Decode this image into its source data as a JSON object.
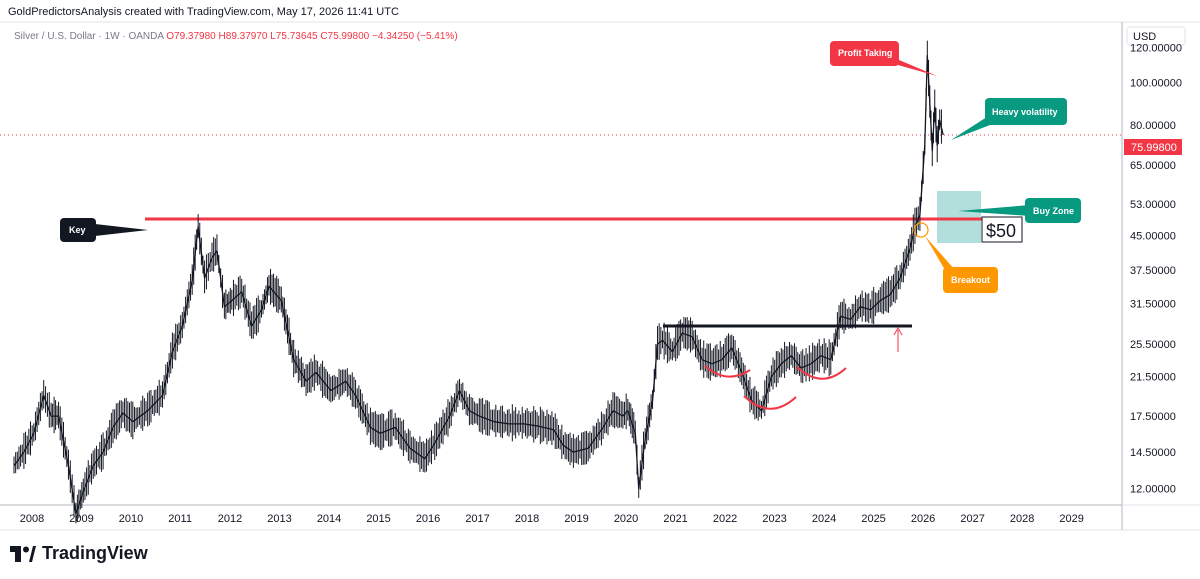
{
  "header": {
    "attribution": "GoldPredictorsAnalysis created with TradingView.com, May 17, 2026 11:41 UTC"
  },
  "legend": {
    "symbol": "Silver / U.S. Dollar · 1W · OANDA",
    "open": "O79.37980",
    "high": "H89.37970",
    "low": "L75.73645",
    "close": "C75.99800",
    "change": "−4.34250 (−5.41%)"
  },
  "price_axis": {
    "currency": "USD",
    "ticks": [
      "120.00000",
      "100.00000",
      "80.00000",
      "65.00000",
      "53.00000",
      "45.00000",
      "37.50000",
      "31.50000",
      "25.50000",
      "21.50000",
      "17.50000",
      "14.50000",
      "12.00000"
    ],
    "last_price_label": "75.99800"
  },
  "time_axis": {
    "ticks": [
      "2008",
      "2009",
      "2010",
      "2011",
      "2012",
      "2013",
      "2014",
      "2015",
      "2016",
      "2017",
      "2018",
      "2019",
      "2020",
      "2021",
      "2022",
      "2023",
      "2024",
      "2025",
      "2026",
      "2027",
      "2028",
      "2029"
    ]
  },
  "annotations": {
    "key": "Key",
    "profit_taking": "Profit Taking",
    "heavy_volatility": "Heavy volatility",
    "buy_zone": "Buy Zone",
    "breakout": "Breakout",
    "fifty": "$50"
  },
  "colors": {
    "red": "#f23645",
    "teal": "#089981",
    "orange": "#ff9800",
    "buy_zone_fill": "#b2dfdb",
    "key_box": "#131722",
    "candle": "#131722"
  },
  "brand": {
    "name": "TradingView"
  },
  "chart_data": {
    "type": "candlestick-line",
    "symbol": "XAGUSD weekly",
    "x_range": [
      2007.6,
      2029.7
    ],
    "y_range_log": [
      11.0,
      135.0
    ],
    "key_level": 49.0,
    "neckline_level": 29.0,
    "series": [
      {
        "name": "Silver",
        "x": [
          2007.6,
          2007.8,
          2008.0,
          2008.2,
          2008.35,
          2008.5,
          2008.7,
          2008.85,
          2009.0,
          2009.2,
          2009.4,
          2009.6,
          2009.8,
          2010.0,
          2010.3,
          2010.6,
          2010.8,
          2011.0,
          2011.2,
          2011.32,
          2011.45,
          2011.6,
          2011.7,
          2011.85,
          2012.0,
          2012.2,
          2012.4,
          2012.6,
          2012.75,
          2013.0,
          2013.25,
          2013.5,
          2013.7,
          2014.0,
          2014.3,
          2014.5,
          2014.8,
          2015.0,
          2015.3,
          2015.6,
          2015.9,
          2016.1,
          2016.4,
          2016.6,
          2016.8,
          2017.0,
          2017.3,
          2017.6,
          2017.9,
          2018.2,
          2018.5,
          2018.7,
          2018.9,
          2019.2,
          2019.5,
          2019.7,
          2019.9,
          2020.0,
          2020.15,
          2020.22,
          2020.35,
          2020.5,
          2020.6,
          2020.7,
          2020.9,
          2021.1,
          2021.3,
          2021.5,
          2021.7,
          2021.9,
          2022.1,
          2022.3,
          2022.5,
          2022.7,
          2022.9,
          2023.1,
          2023.3,
          2023.5,
          2023.7,
          2023.9,
          2024.1,
          2024.3,
          2024.5,
          2024.7,
          2024.9,
          2025.1,
          2025.3,
          2025.5,
          2025.7,
          2025.8,
          2025.9,
          2026.0,
          2026.05,
          2026.1,
          2026.15,
          2026.2,
          2026.25,
          2026.3,
          2026.37
        ],
        "y": [
          13.5,
          14.5,
          16.0,
          19.5,
          17.5,
          17.5,
          13.5,
          10.5,
          11.8,
          13.5,
          14.5,
          16.5,
          17.8,
          17.0,
          18.0,
          19.5,
          24.5,
          28.0,
          35.5,
          47.0,
          36.0,
          40.0,
          41.5,
          31.0,
          32.0,
          33.5,
          28.0,
          30.5,
          34.5,
          32.0,
          23.5,
          21.0,
          22.0,
          20.0,
          21.0,
          19.5,
          16.5,
          16.0,
          16.5,
          14.8,
          14.0,
          15.2,
          17.5,
          20.0,
          18.0,
          17.5,
          17.0,
          16.8,
          16.8,
          16.6,
          16.3,
          15.0,
          14.5,
          14.8,
          16.5,
          18.0,
          17.5,
          18.0,
          16.0,
          12.0,
          15.5,
          19.0,
          25.5,
          26.0,
          24.5,
          27.0,
          26.5,
          23.5,
          23.0,
          23.5,
          25.0,
          22.0,
          19.0,
          18.0,
          21.5,
          23.0,
          24.0,
          22.5,
          23.0,
          24.0,
          23.5,
          29.5,
          29.0,
          31.0,
          30.5,
          32.0,
          33.0,
          36.0,
          42.0,
          47.0,
          50.0,
          72.0,
          115.0,
          90.0,
          70.0,
          88.0,
          72.0,
          82.0,
          76.0
        ]
      }
    ],
    "last_close": 75.998
  }
}
